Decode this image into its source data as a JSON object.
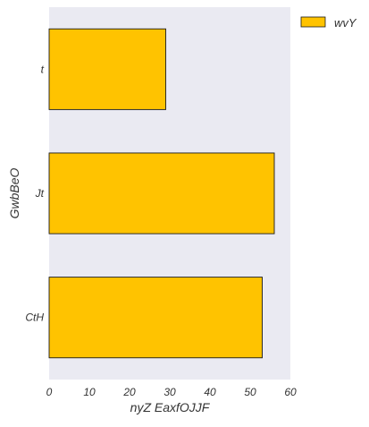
{
  "chart_data": {
    "type": "bar",
    "orientation": "horizontal",
    "categories": [
      "t",
      "Jt",
      "CtH"
    ],
    "series": [
      {
        "name": "wvY",
        "values": [
          29,
          56,
          53
        ]
      }
    ],
    "xlabel": "nyZ EaxfOJJF",
    "ylabel": "GwbBeO",
    "xlim": [
      0,
      60
    ],
    "xticks": [
      "0",
      "10",
      "20",
      "30",
      "40",
      "50",
      "60"
    ],
    "grid": false,
    "legend_position": "upper-right-outside",
    "colors": {
      "bar": "#FFC300",
      "bar_edge": "#1a1a1a",
      "plot_background": "#EAEAF2",
      "text": "#333333"
    }
  }
}
